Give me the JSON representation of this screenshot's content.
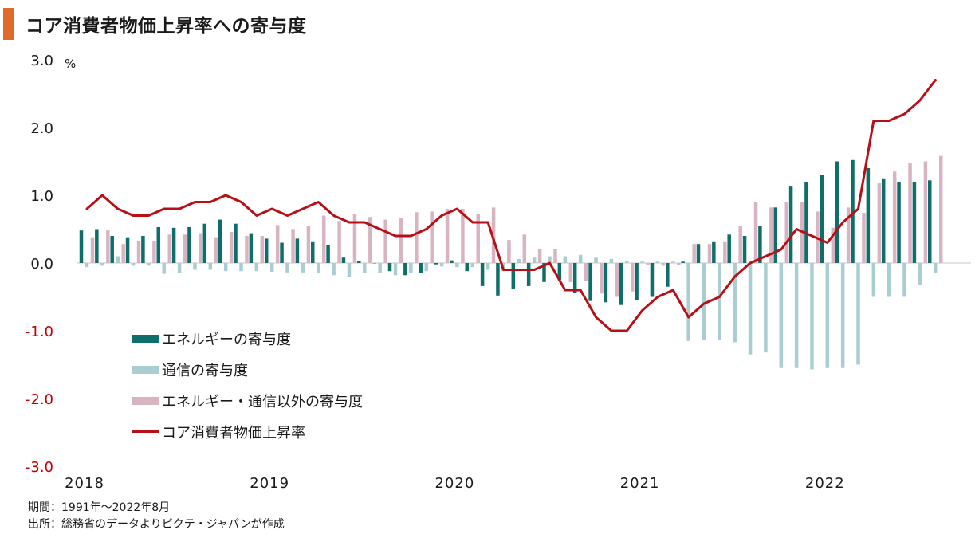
{
  "title": "コア消費者物価上昇率への寄与度",
  "colors": {
    "accent": "#e06a2b",
    "energy": "#0f6e6a",
    "telecom": "#a9cdd0",
    "other": "#d8b4c3",
    "core": "#b80f16",
    "negative_tick": "#c00000"
  },
  "notes": [
    "期間：1991年～2022年8月",
    "出所：総務省のデータよりピクテ・ジャパンが作成"
  ],
  "chart_data": {
    "type": "bar",
    "title": "コア消費者物価上昇率への寄与度",
    "unit": "%",
    "ylim": [
      -3.0,
      3.0
    ],
    "yticks": [
      "3.0",
      "2.0",
      "1.0",
      "0.0",
      "-1.0",
      "-2.0",
      "-3.0"
    ],
    "year_labels": [
      "2018",
      "2019",
      "2020",
      "2021",
      "2022"
    ],
    "grid": false,
    "legend_position": "lower-left",
    "x": [
      "2018-01",
      "2018-02",
      "2018-03",
      "2018-04",
      "2018-05",
      "2018-06",
      "2018-07",
      "2018-08",
      "2018-09",
      "2018-10",
      "2018-11",
      "2018-12",
      "2019-01",
      "2019-02",
      "2019-03",
      "2019-04",
      "2019-05",
      "2019-06",
      "2019-07",
      "2019-08",
      "2019-09",
      "2019-10",
      "2019-11",
      "2019-12",
      "2020-01",
      "2020-02",
      "2020-03",
      "2020-04",
      "2020-05",
      "2020-06",
      "2020-07",
      "2020-08",
      "2020-09",
      "2020-10",
      "2020-11",
      "2020-12",
      "2021-01",
      "2021-02",
      "2021-03",
      "2021-04",
      "2021-05",
      "2021-06",
      "2021-07",
      "2021-08",
      "2021-09",
      "2021-10",
      "2021-11",
      "2021-12",
      "2022-01",
      "2022-02",
      "2022-03",
      "2022-04",
      "2022-05",
      "2022-06",
      "2022-07",
      "2022-08"
    ],
    "series": [
      {
        "name": "エネルギーの寄与度",
        "kind": "bar",
        "values": [
          0.48,
          0.5,
          0.4,
          0.38,
          0.4,
          0.53,
          0.52,
          0.53,
          0.58,
          0.64,
          0.58,
          0.44,
          0.36,
          0.3,
          0.36,
          0.32,
          0.26,
          0.08,
          0.03,
          0.0,
          -0.12,
          -0.18,
          -0.15,
          -0.02,
          0.04,
          -0.12,
          -0.34,
          -0.48,
          -0.38,
          -0.34,
          -0.28,
          -0.25,
          -0.44,
          -0.56,
          -0.58,
          -0.62,
          -0.55,
          -0.5,
          -0.35,
          0.02,
          0.28,
          0.32,
          0.42,
          0.4,
          0.55,
          0.82,
          1.14,
          1.2,
          1.3,
          1.5,
          1.52,
          1.4,
          1.25,
          1.2,
          1.2,
          1.22
        ]
      },
      {
        "name": "通信の寄与度",
        "kind": "bar",
        "values": [
          -0.06,
          -0.04,
          0.1,
          -0.04,
          -0.04,
          -0.16,
          -0.15,
          -0.1,
          -0.1,
          -0.12,
          -0.12,
          -0.12,
          -0.13,
          -0.14,
          -0.14,
          -0.15,
          -0.18,
          -0.2,
          -0.15,
          -0.14,
          -0.18,
          -0.15,
          -0.12,
          -0.05,
          -0.06,
          -0.06,
          -0.1,
          -0.12,
          0.06,
          0.08,
          0.1,
          0.1,
          0.12,
          0.08,
          0.06,
          0.03,
          0.02,
          0.02,
          0.02,
          -1.15,
          -1.13,
          -1.14,
          -1.17,
          -1.35,
          -1.32,
          -1.55,
          -1.55,
          -1.57,
          -1.55,
          -1.55,
          -1.5,
          -0.5,
          -0.5,
          -0.5,
          -0.32,
          -0.15
        ]
      },
      {
        "name": "エネルギー・通信以外の寄与度",
        "kind": "bar",
        "values": [
          0.38,
          0.48,
          0.28,
          0.33,
          0.33,
          0.42,
          0.42,
          0.44,
          0.38,
          0.46,
          0.4,
          0.4,
          0.56,
          0.5,
          0.55,
          0.7,
          0.62,
          0.72,
          0.68,
          0.64,
          0.66,
          0.75,
          0.76,
          0.8,
          0.8,
          0.72,
          0.82,
          0.34,
          0.42,
          0.2,
          0.2,
          -0.28,
          -0.27,
          -0.45,
          -0.5,
          -0.42,
          -0.03,
          -0.04,
          -0.03,
          0.28,
          0.28,
          0.32,
          0.55,
          0.9,
          0.82,
          0.9,
          0.9,
          0.76,
          0.52,
          0.82,
          0.74,
          1.18,
          1.35,
          1.47,
          1.5,
          1.58
        ]
      },
      {
        "name": "コア消費者物価上昇率",
        "kind": "line",
        "values": [
          0.8,
          1.0,
          0.8,
          0.7,
          0.7,
          0.8,
          0.8,
          0.9,
          0.9,
          1.0,
          0.9,
          0.7,
          0.8,
          0.7,
          0.8,
          0.9,
          0.7,
          0.6,
          0.6,
          0.5,
          0.4,
          0.4,
          0.5,
          0.7,
          0.8,
          0.6,
          0.6,
          -0.1,
          -0.1,
          -0.1,
          0.0,
          -0.4,
          -0.4,
          -0.8,
          -1.0,
          -1.0,
          -0.7,
          -0.5,
          -0.4,
          -0.8,
          -0.6,
          -0.5,
          -0.2,
          0.0,
          0.1,
          0.2,
          0.5,
          0.4,
          0.3,
          0.6,
          0.8,
          2.1,
          2.1,
          2.2,
          2.4,
          2.7
        ]
      }
    ]
  }
}
